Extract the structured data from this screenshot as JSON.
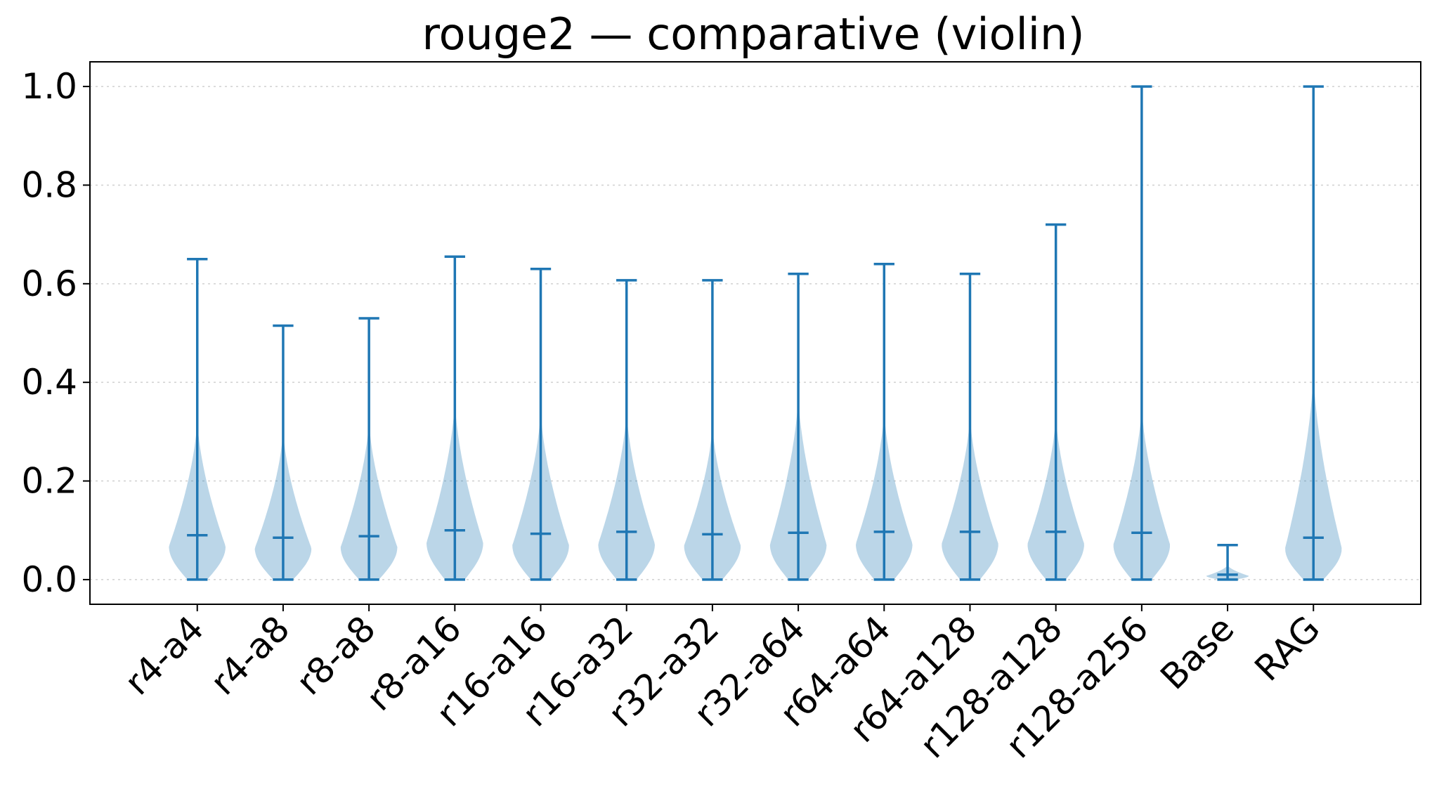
{
  "chart_data": {
    "type": "violin",
    "title": "rouge2 — comparative (violin)",
    "xlabel": "",
    "ylabel": "",
    "ylim": [
      -0.05,
      1.05
    ],
    "yticks": [
      0.0,
      0.2,
      0.4,
      0.6,
      0.8,
      1.0
    ],
    "ytick_labels": [
      "0.0",
      "0.2",
      "0.4",
      "0.6",
      "0.8",
      "1.0"
    ],
    "grid": "y-dotted",
    "color": "#1f77b4",
    "categories": [
      "r4-a4",
      "r4-a8",
      "r8-a8",
      "r8-a16",
      "r16-a16",
      "r16-a32",
      "r32-a32",
      "r32-a64",
      "r64-a64",
      "r64-a128",
      "r128-a128",
      "r128-a256",
      "Base",
      "RAG"
    ],
    "series": [
      {
        "category": "r4-a4",
        "min": 0.0,
        "median": 0.09,
        "max": 0.65,
        "density_top": 0.33
      },
      {
        "category": "r4-a8",
        "min": 0.0,
        "median": 0.085,
        "max": 0.515,
        "density_top": 0.31
      },
      {
        "category": "r8-a8",
        "min": 0.0,
        "median": 0.088,
        "max": 0.53,
        "density_top": 0.33
      },
      {
        "category": "r8-a16",
        "min": 0.0,
        "median": 0.1,
        "max": 0.655,
        "density_top": 0.37
      },
      {
        "category": "r16-a16",
        "min": 0.0,
        "median": 0.093,
        "max": 0.63,
        "density_top": 0.35
      },
      {
        "category": "r16-a32",
        "min": 0.0,
        "median": 0.097,
        "max": 0.607,
        "density_top": 0.35
      },
      {
        "category": "r32-a32",
        "min": 0.0,
        "median": 0.092,
        "max": 0.607,
        "density_top": 0.32
      },
      {
        "category": "r32-a64",
        "min": 0.0,
        "median": 0.095,
        "max": 0.62,
        "density_top": 0.38
      },
      {
        "category": "r64-a64",
        "min": 0.0,
        "median": 0.097,
        "max": 0.64,
        "density_top": 0.35
      },
      {
        "category": "r64-a128",
        "min": 0.0,
        "median": 0.097,
        "max": 0.62,
        "density_top": 0.34
      },
      {
        "category": "r128-a128",
        "min": 0.0,
        "median": 0.097,
        "max": 0.72,
        "density_top": 0.34
      },
      {
        "category": "r128-a256",
        "min": 0.0,
        "median": 0.095,
        "max": 1.0,
        "density_top": 0.36
      },
      {
        "category": "Base",
        "min": 0.0,
        "median": 0.01,
        "max": 0.07,
        "density_top": 0.03
      },
      {
        "category": "RAG",
        "min": 0.0,
        "median": 0.085,
        "max": 1.0,
        "density_top": 0.43
      }
    ]
  }
}
